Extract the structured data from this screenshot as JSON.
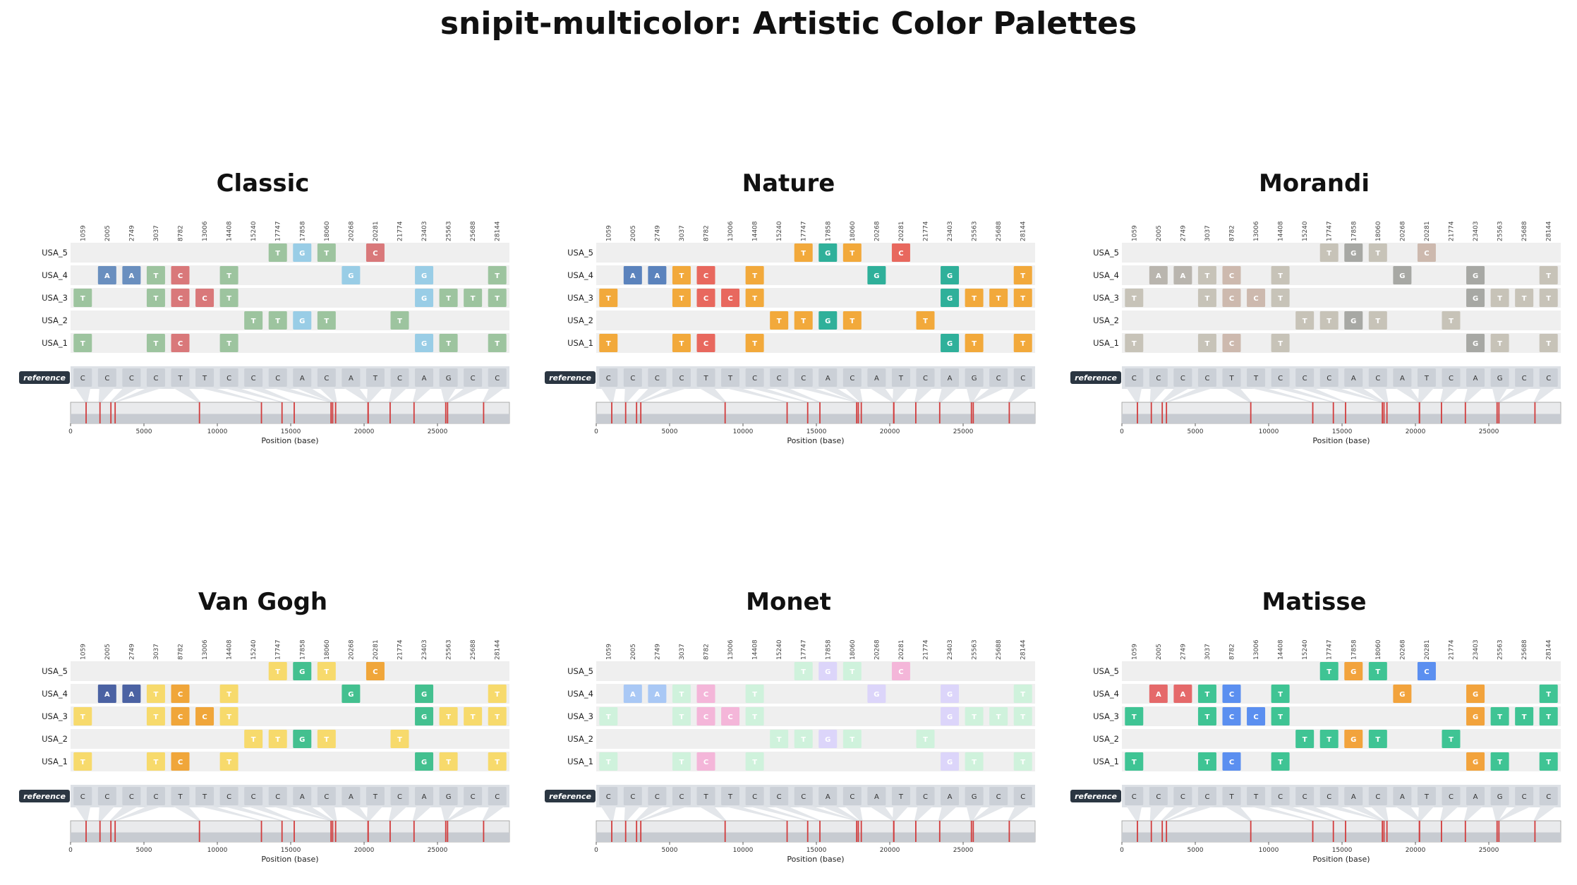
{
  "title": "snipit-multicolor: Artistic Color Palettes",
  "chart_data": {
    "type": "snp-alignment",
    "positions": [
      1059,
      2005,
      2749,
      3037,
      8782,
      13006,
      14408,
      15240,
      17747,
      17858,
      18060,
      20268,
      20281,
      21774,
      23403,
      25563,
      25688,
      28144
    ],
    "reference_label": "reference",
    "reference_bases": [
      "C",
      "C",
      "C",
      "C",
      "T",
      "T",
      "C",
      "C",
      "C",
      "A",
      "C",
      "A",
      "T",
      "C",
      "A",
      "G",
      "C",
      "C"
    ],
    "sequences": [
      {
        "name": "USA_5",
        "snps": {
          "17747": "T",
          "17858": "G",
          "18060": "T",
          "20281": "C"
        }
      },
      {
        "name": "USA_4",
        "snps": {
          "2005": "A",
          "2749": "A",
          "3037": "T",
          "8782": "C",
          "14408": "T",
          "20268": "G",
          "23403": "G",
          "28144": "T"
        }
      },
      {
        "name": "USA_3",
        "snps": {
          "1059": "T",
          "3037": "T",
          "8782": "C",
          "13006": "C",
          "14408": "T",
          "23403": "G",
          "25563": "T",
          "25688": "T",
          "28144": "T"
        }
      },
      {
        "name": "USA_2",
        "snps": {
          "15240": "T",
          "17747": "T",
          "17858": "G",
          "18060": "T",
          "21774": "T"
        }
      },
      {
        "name": "USA_1",
        "snps": {
          "1059": "T",
          "3037": "T",
          "8782": "C",
          "14408": "T",
          "23403": "G",
          "25563": "T",
          "28144": "T"
        }
      }
    ],
    "genome_xlim": [
      0,
      29903
    ],
    "genome_ticks": [
      0,
      5000,
      10000,
      15000,
      20000,
      25000
    ],
    "xlabel": "Position (base)",
    "panels": [
      {
        "title": "Classic",
        "colors": {
          "A": "#6a8fbf",
          "C": "#d9787a",
          "G": "#99cde6",
          "T": "#9dc49f"
        },
        "text_color": "#ffffff"
      },
      {
        "title": "Nature",
        "colors": {
          "A": "#5b83bd",
          "C": "#e8685e",
          "G": "#2fb09a",
          "T": "#f2a93b"
        },
        "text_color": "#ffffff"
      },
      {
        "title": "Morandi",
        "colors": {
          "A": "#b9b5ae",
          "C": "#cdb9ae",
          "G": "#a7a8a4",
          "T": "#c7c3b8"
        },
        "text_color": "#ffffff"
      },
      {
        "title": "Van Gogh",
        "colors": {
          "A": "#4b62a3",
          "C": "#f0a63a",
          "G": "#43c08f",
          "T": "#f7da6c"
        },
        "text_color": "#ffffff"
      },
      {
        "title": "Monet",
        "colors": {
          "A": "#a9c8f5",
          "C": "#f4b6d9",
          "G": "#dcd5fa",
          "T": "#cff2dc"
        },
        "text_color": "#ffffff"
      },
      {
        "title": "Matisse",
        "colors": {
          "A": "#e5696a",
          "C": "#5b8ff0",
          "G": "#f2a33c",
          "T": "#3fc494"
        },
        "text_color": "#ffffff"
      }
    ],
    "colors": {
      "row_band": "#efefef",
      "reference_band": "#dde1e6",
      "reference_cell": "#cbd0d7",
      "reference_label_bg": "#2b3642",
      "marker": "#d23c3c",
      "genome_bg": "#e9eaec",
      "genome_bottom": "#c7cbd1",
      "connector": "#e3e6ea"
    }
  }
}
